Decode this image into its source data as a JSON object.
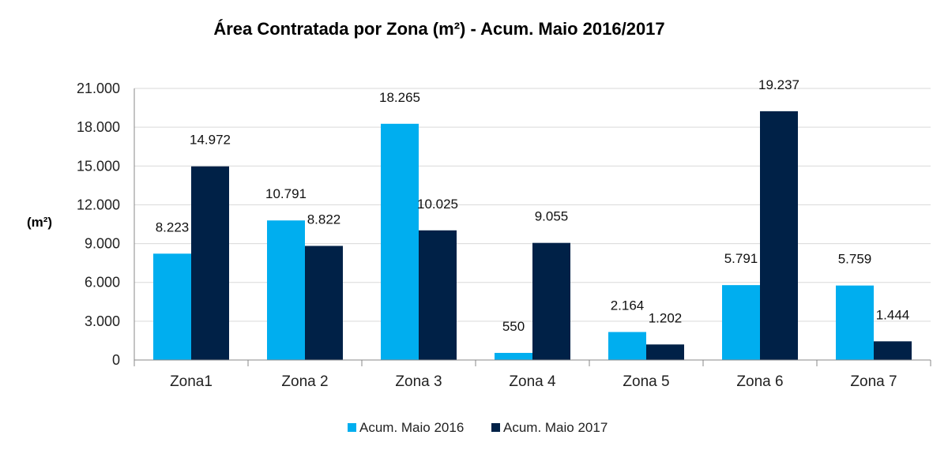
{
  "chart_data": {
    "type": "bar",
    "title": "Área Contratada por Zona (m²) - Acum. Maio 2016/2017",
    "ylabel": "(m²)",
    "xlabel": "",
    "ylim": [
      0,
      21000
    ],
    "ytick_labels": [
      "0",
      "3.000",
      "6.000",
      "9.000",
      "12.000",
      "15.000",
      "18.000",
      "21.000"
    ],
    "ytick_values": [
      0,
      3000,
      6000,
      9000,
      12000,
      15000,
      18000,
      21000
    ],
    "grid": true,
    "legend_position": "bottom",
    "categories": [
      "Zona1",
      "Zona 2",
      "Zona 3",
      "Zona 4",
      "Zona 5",
      "Zona 6",
      "Zona 7"
    ],
    "series": [
      {
        "name": "Acum. Maio 2016",
        "color": "#00AEEF",
        "values": [
          8223,
          10791,
          18265,
          550,
          2164,
          5791,
          5759
        ],
        "labels": [
          "8.223",
          "10.791",
          "18.265",
          "550",
          "2.164",
          "5.791",
          "5.759"
        ]
      },
      {
        "name": "Acum. Maio 2017",
        "color": "#002147",
        "values": [
          14972,
          8822,
          10025,
          9055,
          1202,
          19237,
          1444
        ],
        "labels": [
          "14.972",
          "8.822",
          "10.025",
          "9.055",
          "1.202",
          "19.237",
          "1.444"
        ]
      }
    ]
  }
}
